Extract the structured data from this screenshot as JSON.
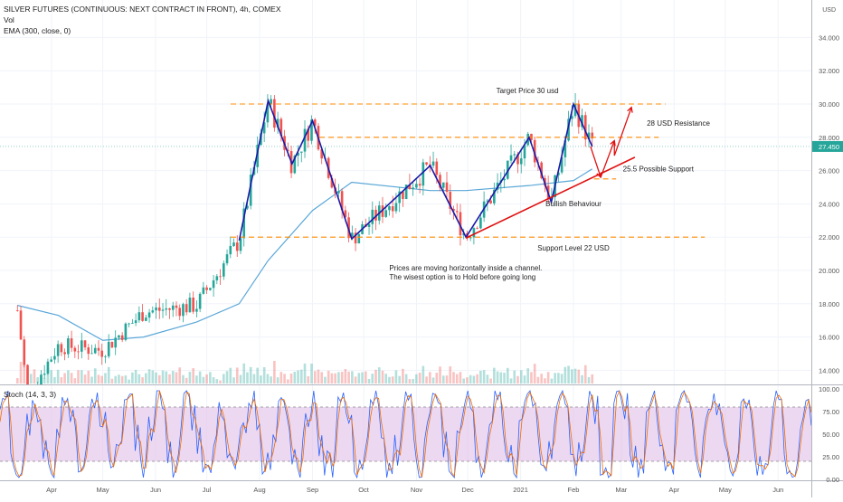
{
  "header": {
    "symbol_line": "SILVER FUTURES (CONTINUOUS: NEXT CONTRACT IN FRONT), 4h, COMEX",
    "vol_label": "Vol",
    "ema_label": "EMA (300, close, 0)",
    "currency": "USD"
  },
  "price_axis": {
    "ticks": [
      "34.000",
      "32.000",
      "30.000",
      "28.000",
      "26.000",
      "24.000",
      "22.000",
      "20.000",
      "18.000",
      "16.000",
      "14.000"
    ],
    "last_price": "27.450"
  },
  "time_axis": {
    "ticks": [
      "Apr",
      "May",
      "Jun",
      "Jul",
      "Aug",
      "Sep",
      "Oct",
      "Nov",
      "Dec",
      "2021",
      "Feb",
      "Mar",
      "Apr",
      "May",
      "Jun"
    ]
  },
  "annotations": {
    "target": "Target Price 30 usd",
    "resistance": "28 USD Resistance",
    "support_255": "25.5 Possible Support",
    "bullish": "Bullish Behaviour",
    "support_22": "Support Level 22 USD",
    "note_line1": "Prices are moving horizontally inside a channel.",
    "note_line2": "The wisest option is to Hold before going long"
  },
  "stoch": {
    "label": "Stoch (14, 3, 3)",
    "ticks": [
      "100.00",
      "75.00",
      "50.00",
      "25.00",
      "0.00"
    ],
    "band": [
      20,
      80
    ],
    "colors": {
      "k": "#2962ff",
      "d": "#ef6c00",
      "band": "#e1bee7"
    }
  },
  "colors": {
    "up": "#26a69a",
    "down": "#ef5350",
    "ema": "#5aa7d8",
    "pattern": "#1a1aa8",
    "trend": "#e01010",
    "levels": "#ff8c00",
    "price_label": "#26a69a"
  },
  "chart_data": {
    "type": "line",
    "title": "SILVER FUTURES (CONTINUOUS: NEXT CONTRACT IN FRONT), 4h, COMEX",
    "ylabel": "USD",
    "ylim": [
      13.4,
      35.2
    ],
    "grid": true,
    "price_path": [
      {
        "x": "2020-03-12",
        "y": 17.6
      },
      {
        "x": "2020-03-18",
        "y": 12.5
      },
      {
        "x": "2020-04-05",
        "y": 15.5
      },
      {
        "x": "2020-05-01",
        "y": 15.2
      },
      {
        "x": "2020-05-25",
        "y": 17.5
      },
      {
        "x": "2020-06-25",
        "y": 17.9
      },
      {
        "x": "2020-07-20",
        "y": 21.8
      },
      {
        "x": "2020-08-06",
        "y": 30.2
      },
      {
        "x": "2020-08-20",
        "y": 26.4
      },
      {
        "x": "2020-09-01",
        "y": 29.0
      },
      {
        "x": "2020-09-24",
        "y": 21.9
      },
      {
        "x": "2020-11-09",
        "y": 26.3
      },
      {
        "x": "2020-11-30",
        "y": 22.0
      },
      {
        "x": "2021-01-06",
        "y": 28.0
      },
      {
        "x": "2021-01-19",
        "y": 24.1
      },
      {
        "x": "2021-02-01",
        "y": 30.0
      },
      {
        "x": "2021-02-12",
        "y": 27.45
      }
    ],
    "series": [
      {
        "name": "EMA (300, close, 0)",
        "points": [
          {
            "x": "2020-03-12",
            "y": 17.9
          },
          {
            "x": "2020-04-05",
            "y": 17.3
          },
          {
            "x": "2020-05-01",
            "y": 15.8
          },
          {
            "x": "2020-05-25",
            "y": 16.0
          },
          {
            "x": "2020-06-25",
            "y": 16.9
          },
          {
            "x": "2020-07-20",
            "y": 18.0
          },
          {
            "x": "2020-08-06",
            "y": 20.6
          },
          {
            "x": "2020-09-01",
            "y": 23.6
          },
          {
            "x": "2020-09-24",
            "y": 25.3
          },
          {
            "x": "2020-11-09",
            "y": 24.8
          },
          {
            "x": "2020-11-30",
            "y": 24.8
          },
          {
            "x": "2021-01-06",
            "y": 25.1
          },
          {
            "x": "2021-02-01",
            "y": 25.4
          },
          {
            "x": "2021-02-12",
            "y": 26.1
          }
        ]
      }
    ],
    "levels": [
      {
        "name": "Target Price 30 usd",
        "y": 30.0
      },
      {
        "name": "28 USD Resistance",
        "y": 28.0
      },
      {
        "name": "25.5 Possible Support",
        "y": 25.5
      },
      {
        "name": "Support Level 22 USD",
        "y": 22.0
      }
    ]
  }
}
